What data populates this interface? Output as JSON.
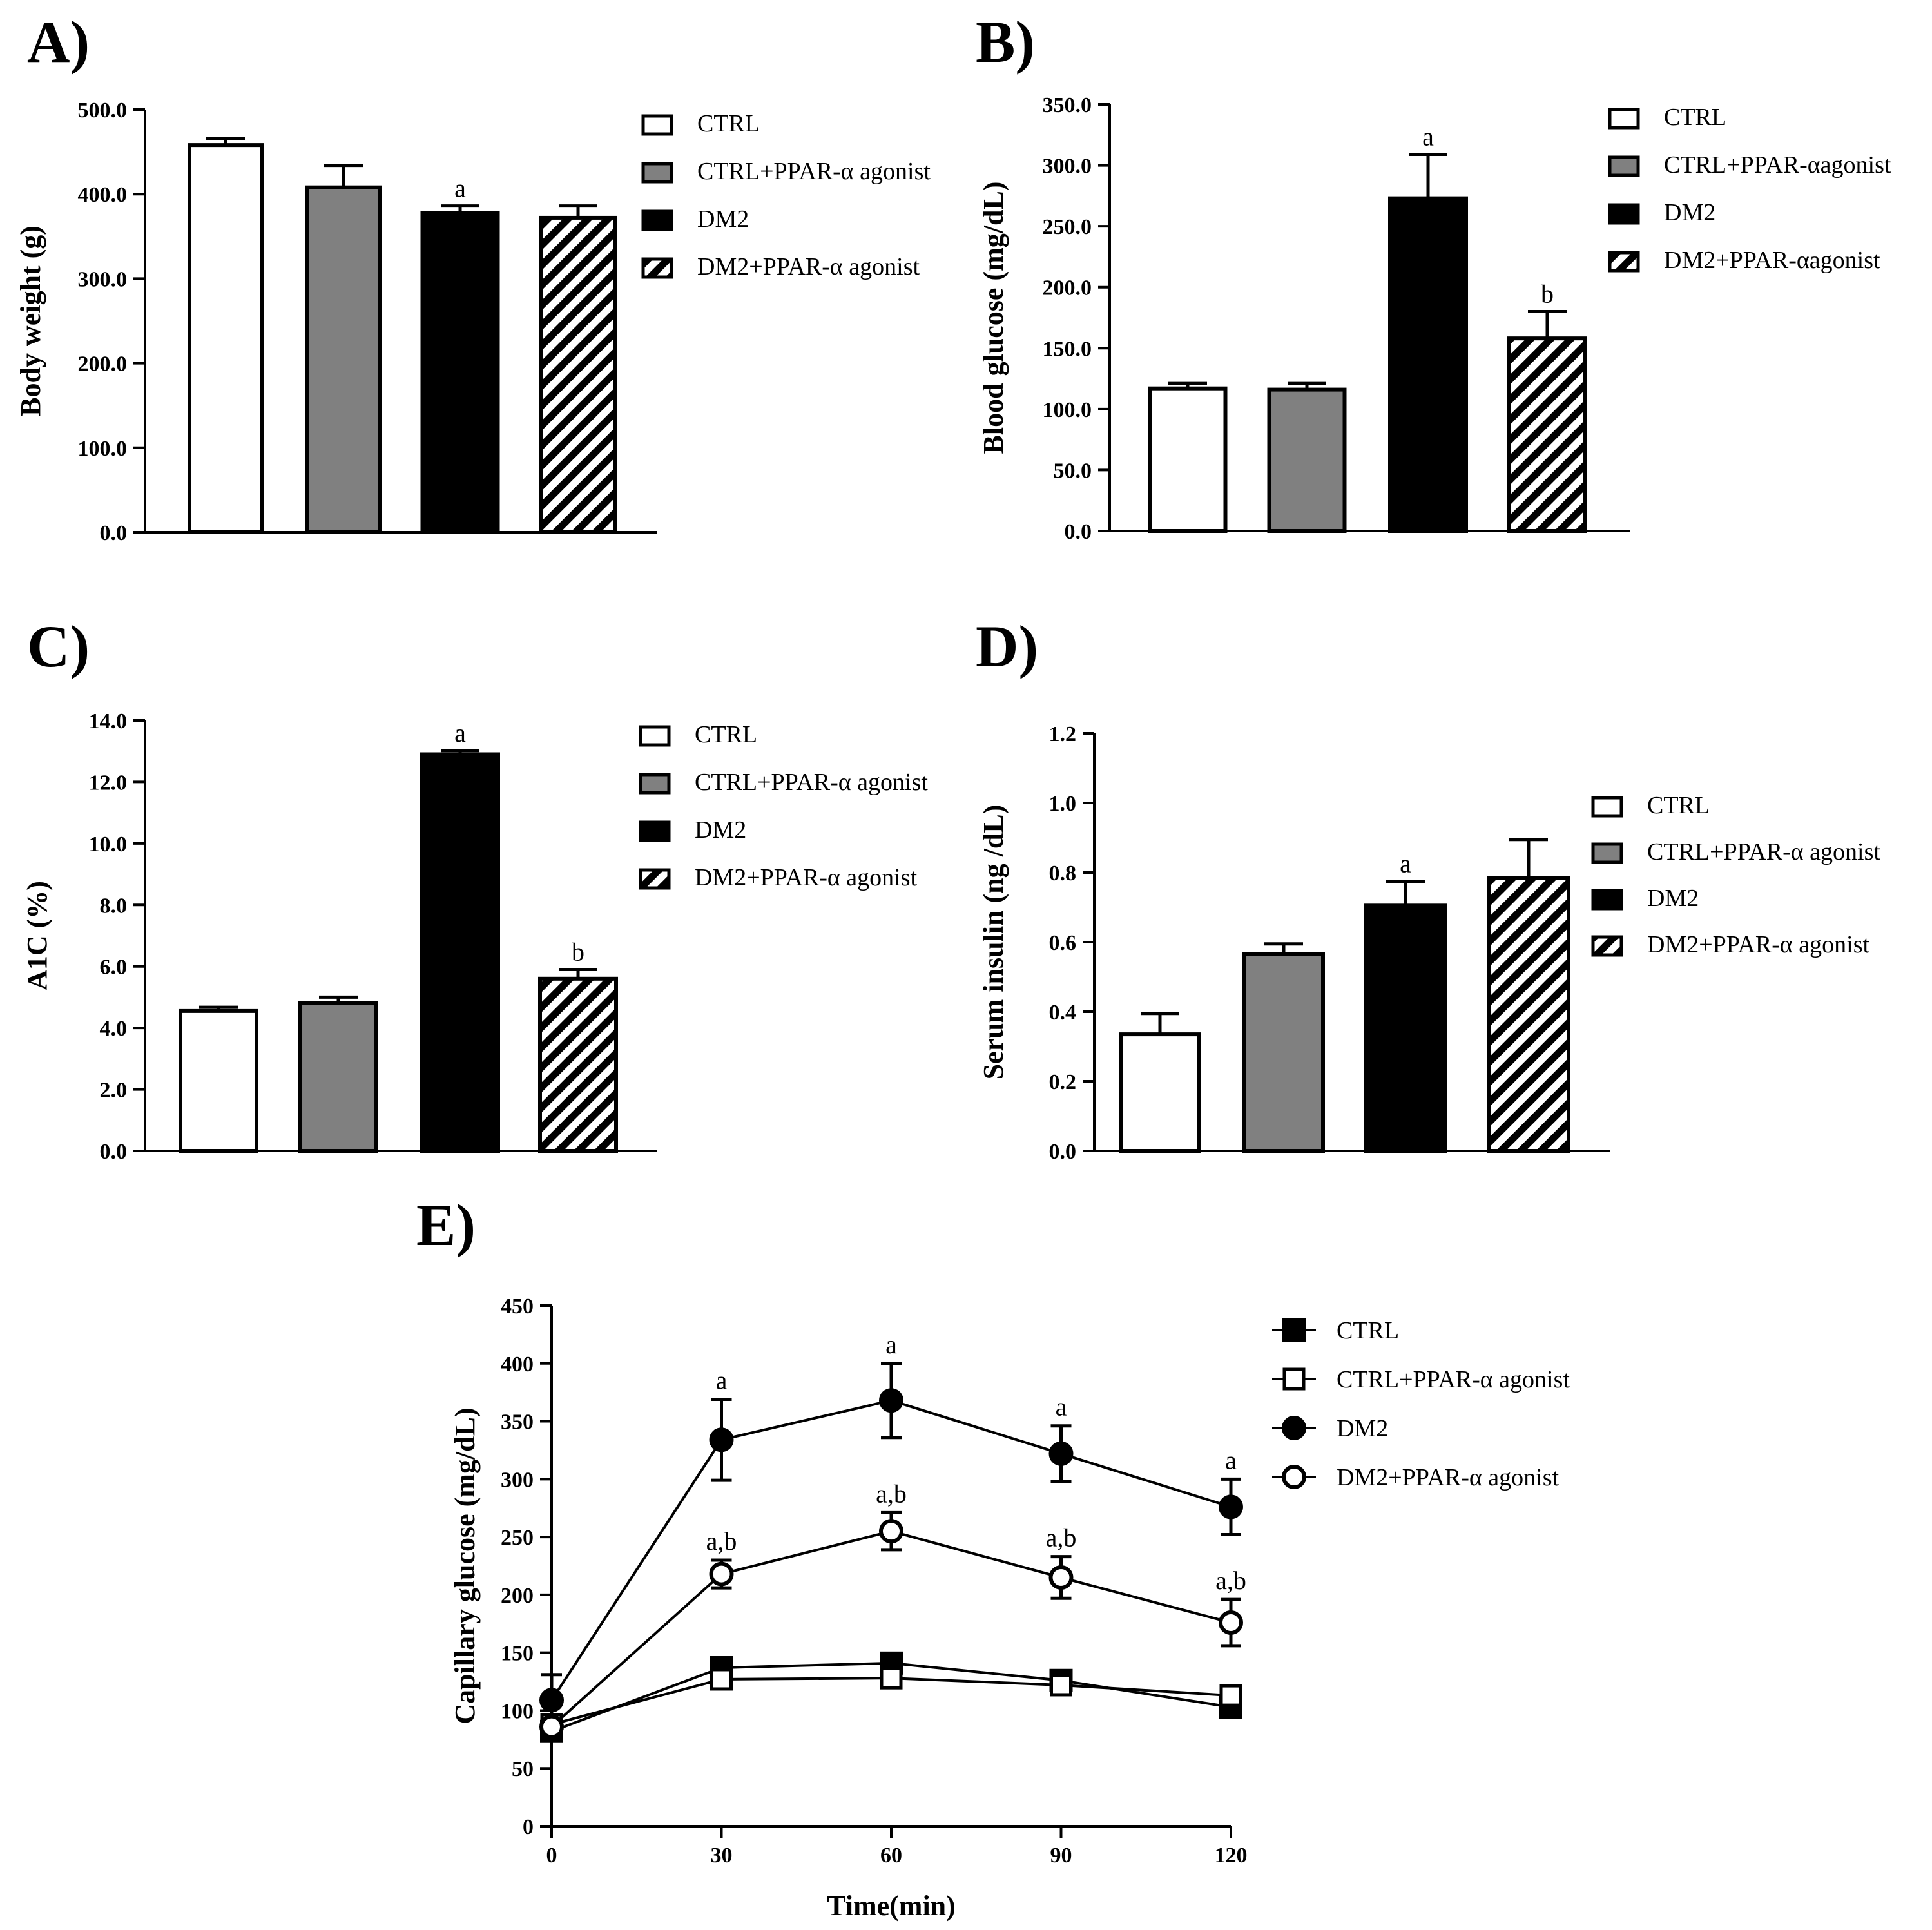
{
  "colors": {
    "ctrl": "#ffffff",
    "ctrl_ppar": "#808080",
    "dm2": "#000000",
    "stroke": "#000000"
  },
  "chart_data": [
    {
      "id": "A",
      "panel_label": "A)",
      "type": "bar",
      "ylabel": "Body weight (g)",
      "xlabel": "",
      "ylim": [
        0,
        500
      ],
      "yticks": [
        "0.0",
        "100.0",
        "200.0",
        "300.0",
        "400.0",
        "500.0"
      ],
      "categories": [
        "CTRL",
        "CTRL+PPAR-α agonist",
        "DM2",
        "DM2+PPAR-α agonist"
      ],
      "fills": [
        "white",
        "gray",
        "black",
        "hatch"
      ],
      "values": [
        458,
        408,
        378,
        372
      ],
      "errors": [
        8,
        26,
        8,
        14
      ],
      "annotations": [
        "",
        "",
        "a",
        ""
      ],
      "legend": [
        "CTRL",
        "CTRL+PPAR-α agonist",
        "DM2",
        "DM2+PPAR-α agonist"
      ],
      "legend_position": "right"
    },
    {
      "id": "B",
      "panel_label": "B)",
      "type": "bar",
      "ylabel": "Blood glucose (mg/dL)",
      "xlabel": "",
      "ylim": [
        0,
        350
      ],
      "yticks": [
        "0.0",
        "50.0",
        "100.0",
        "150.0",
        "200.0",
        "250.0",
        "300.0",
        "350.0"
      ],
      "categories": [
        "CTRL",
        "CTRL+PPAR-αagonist",
        "DM2",
        "DM2+PPAR-αagonist"
      ],
      "fills": [
        "white",
        "gray",
        "black",
        "hatch"
      ],
      "values": [
        117,
        116,
        273,
        158
      ],
      "errors": [
        4,
        5,
        36,
        22
      ],
      "annotations": [
        "",
        "",
        "a",
        "b"
      ],
      "legend": [
        "CTRL",
        "CTRL+PPAR-αagonist",
        "DM2",
        "DM2+PPAR-αagonist"
      ],
      "legend_position": "right"
    },
    {
      "id": "C",
      "panel_label": "C)",
      "type": "bar",
      "ylabel": "A1C (%)",
      "xlabel": "",
      "ylim": [
        0,
        14
      ],
      "yticks": [
        "0.0",
        "2.0",
        "4.0",
        "6.0",
        "8.0",
        "10.0",
        "12.0",
        "14.0"
      ],
      "categories": [
        "CTRL",
        "CTRL+PPAR-α agonist",
        "DM2",
        "DM2+PPAR-α agonist"
      ],
      "fills": [
        "white",
        "gray",
        "black",
        "hatch"
      ],
      "values": [
        4.55,
        4.8,
        12.9,
        5.6
      ],
      "errors": [
        0.12,
        0.2,
        0.12,
        0.3
      ],
      "annotations": [
        "",
        "",
        "a",
        "b"
      ],
      "legend": [
        "CTRL",
        "CTRL+PPAR-α agonist",
        "DM2",
        "DM2+PPAR-α agonist"
      ],
      "legend_position": "right"
    },
    {
      "id": "D",
      "panel_label": "D)",
      "type": "bar",
      "ylabel": "Serum insulin (ng /dL)",
      "xlabel": "",
      "ylim": [
        0,
        1.2
      ],
      "yticks": [
        "0.0",
        "0.2",
        "0.4",
        "0.6",
        "0.8",
        "1.0",
        "1.2"
      ],
      "categories": [
        "CTRL",
        "CTRL+PPAR-α agonist",
        "DM2",
        "DM2+PPAR-α agonist"
      ],
      "fills": [
        "white",
        "gray",
        "black",
        "hatch"
      ],
      "values": [
        0.335,
        0.565,
        0.705,
        0.785
      ],
      "errors": [
        0.06,
        0.03,
        0.07,
        0.11
      ],
      "annotations": [
        "",
        "",
        "a",
        ""
      ],
      "legend": [
        "CTRL",
        "CTRL+PPAR-α agonist",
        "DM2",
        "DM2+PPAR-α agonist"
      ],
      "legend_position": "right"
    },
    {
      "id": "E",
      "panel_label": "E)",
      "type": "line",
      "ylabel": "Capillary glucose (mg/dL)",
      "xlabel": "Time(min)",
      "xlim": [
        0,
        120
      ],
      "ylim": [
        0,
        450
      ],
      "x": [
        0,
        30,
        60,
        90,
        120
      ],
      "xticks": [
        "0",
        "30",
        "60",
        "90",
        "120"
      ],
      "yticks": [
        "0",
        "50",
        "100",
        "150",
        "200",
        "250",
        "300",
        "350",
        "400",
        "450"
      ],
      "series": [
        {
          "name": "CTRL",
          "marker": "square-filled",
          "values": [
            82,
            137,
            141,
            126,
            103
          ],
          "errors": [
            0,
            0,
            0,
            0,
            0
          ],
          "annotations": [
            "",
            "",
            "",
            "",
            ""
          ]
        },
        {
          "name": "CTRL+PPAR-α agonist",
          "marker": "square-open",
          "values": [
            88,
            127,
            128,
            122,
            113
          ],
          "errors": [
            0,
            0,
            0,
            0,
            0
          ],
          "annotations": [
            "",
            "",
            "",
            "",
            ""
          ]
        },
        {
          "name": "DM2",
          "marker": "circle-filled",
          "values": [
            109,
            334,
            368,
            322,
            276
          ],
          "errors": [
            22,
            35,
            32,
            24,
            24
          ],
          "annotations": [
            "",
            "a",
            "a",
            "a",
            "a"
          ]
        },
        {
          "name": "DM2+PPAR-α agonist",
          "marker": "circle-open",
          "values": [
            86,
            218,
            255,
            215,
            176
          ],
          "errors": [
            0,
            12,
            16,
            18,
            20
          ],
          "annotations": [
            "",
            "a,b",
            "a,b",
            "a,b",
            "a,b"
          ]
        }
      ],
      "legend_position": "right"
    }
  ]
}
